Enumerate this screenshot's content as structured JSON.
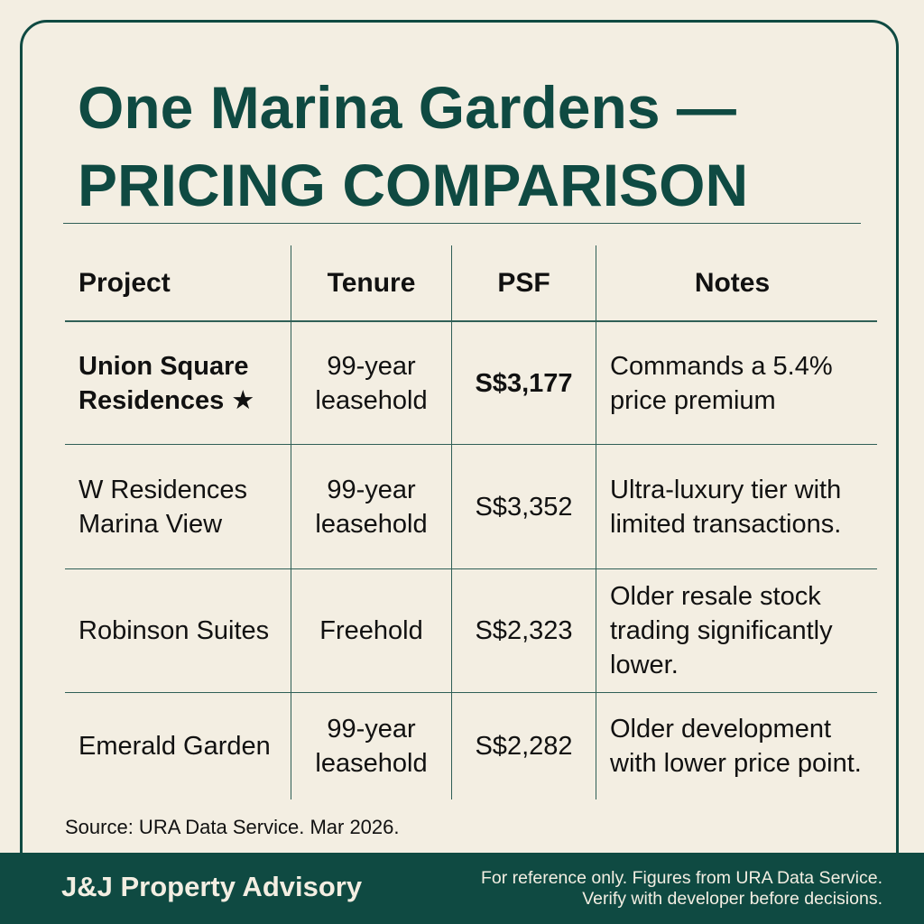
{
  "header": {
    "title": [
      "One Marina Gardens —",
      "PRICING COMPARISON"
    ]
  },
  "table": {
    "columns": [
      "Project",
      "Tenure",
      "PSF",
      "Notes"
    ],
    "rows": [
      [
        "Union Square Residences ★",
        "99-year leasehold",
        "S$3,177",
        "Commands a 5.4% price premium"
      ],
      [
        "W Residences Marina View",
        "99-year leasehold",
        "S$3,352",
        "Ultra-luxury tier with limited transactions."
      ],
      [
        "Robinson Suites",
        "Freehold",
        "S$2,323",
        "Older resale stock trading significantly lower."
      ],
      [
        "Emerald Garden",
        "99-year leasehold",
        "S$2,282",
        "Older development with lower price point."
      ]
    ]
  },
  "source": "Source: URA Data Service. Mar 2026.",
  "footer": {
    "brand": "J&J Property Advisory",
    "disclaimer": [
      "For reference only. Figures from URA Data Service.",
      "Verify with developer before decisions."
    ]
  }
}
